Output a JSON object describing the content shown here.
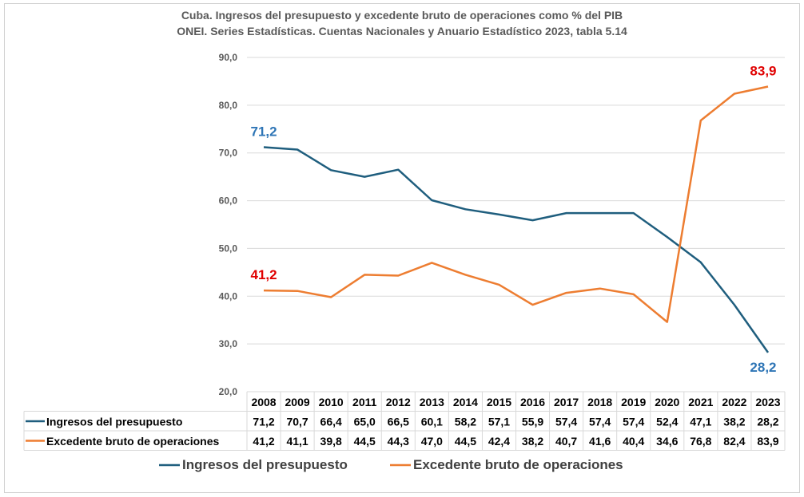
{
  "chart_data": {
    "type": "line",
    "title": "Cuba. Ingresos del presupuesto y excedente bruto de operaciones como % del PIB",
    "subtitle": "ONEI. Series Estadísticas. Cuentas Nacionales y Anuario Estadístico 2023, tabla 5.14",
    "x": [
      "2008",
      "2009",
      "2010",
      "2011",
      "2012",
      "2013",
      "2014",
      "2015",
      "2016",
      "2017",
      "2018",
      "2019",
      "2020",
      "2021",
      "2022",
      "2023"
    ],
    "ylim": [
      20,
      90
    ],
    "yticks": [
      "20,0",
      "30,0",
      "40,0",
      "50,0",
      "60,0",
      "70,0",
      "80,0",
      "90,0"
    ],
    "grid": true,
    "legend_position": "bottom",
    "data_table": true,
    "series": [
      {
        "name": "Ingresos del presupuesto",
        "color": "#1f5e7e",
        "values": [
          71.2,
          70.7,
          66.4,
          65.0,
          66.5,
          60.1,
          58.2,
          57.1,
          55.9,
          57.4,
          57.4,
          57.4,
          52.4,
          47.1,
          38.2,
          28.2
        ],
        "table_values": [
          "71,2",
          "70,7",
          "66,4",
          "65,0",
          "66,5",
          "60,1",
          "58,2",
          "57,1",
          "55,9",
          "57,4",
          "57,4",
          "57,4",
          "52,4",
          "47,1",
          "38,2",
          "28,2"
        ],
        "annotations": [
          {
            "index": 0,
            "text": "71,2",
            "color": "#2e75b6"
          },
          {
            "index": 15,
            "text": "28,2",
            "color": "#2e75b6"
          }
        ]
      },
      {
        "name": "Excedente bruto de operaciones",
        "color": "#ed7d31",
        "values": [
          41.2,
          41.1,
          39.8,
          44.5,
          44.3,
          47.0,
          44.5,
          42.4,
          38.2,
          40.7,
          41.6,
          40.4,
          34.6,
          76.8,
          82.4,
          83.9
        ],
        "table_values": [
          "41,2",
          "41,1",
          "39,8",
          "44,5",
          "44,3",
          "47,0",
          "44,5",
          "42,4",
          "38,2",
          "40,7",
          "41,6",
          "40,4",
          "34,6",
          "76,8",
          "82,4",
          "83,9"
        ],
        "annotations": [
          {
            "index": 0,
            "text": "41,2",
            "color": "#e00000"
          },
          {
            "index": 15,
            "text": "83,9",
            "color": "#e00000"
          }
        ]
      }
    ]
  }
}
